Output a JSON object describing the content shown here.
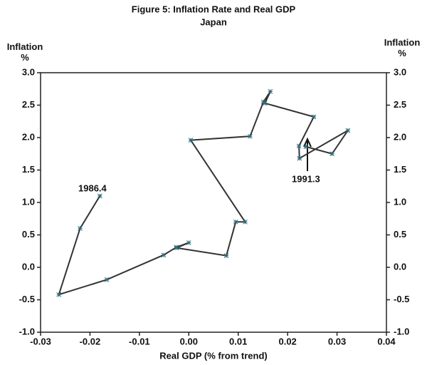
{
  "chart_data": {
    "type": "line",
    "title": "Figure 5: Inflation Rate and Real GDP",
    "subtitle": "Japan",
    "x_label": "Real GDP (% from trend)",
    "y_label": "Inflation %",
    "y2_label": "Inflation %",
    "x": [
      -0.018,
      -0.022,
      -0.0263,
      -0.0166,
      -0.0051,
      -0.0025,
      0,
      -0.0025,
      0.0076,
      0.0095,
      0.0114,
      0.0004,
      0.0124,
      0.0151,
      0.0165,
      0.0154,
      0.0253,
      0.0223,
      0.0224,
      0.0322,
      0.029,
      0.0237
    ],
    "series": [
      {
        "color": "#333333",
        "marker_color": "#2e6b78",
        "values": [
          1.1,
          0.6,
          -0.42,
          -0.19,
          0.19,
          0.31,
          0.38,
          0.3,
          0.18,
          0.7,
          0.7,
          1.96,
          2.02,
          2.55,
          2.71,
          2.53,
          2.32,
          1.87,
          1.68,
          2.11,
          1.75,
          1.86
        ]
      }
    ],
    "annotations": [
      "1986.4",
      "1991.3"
    ],
    "xlim": [
      -0.03,
      0.04
    ],
    "xticks": [
      -0.03,
      -0.02,
      -0.01,
      {
        "value": 0,
        "label": "0.00"
      },
      0.01,
      0.02,
      0.03,
      0.04
    ],
    "ylim": [
      -1,
      3
    ],
    "yticks": [
      {
        "value": -1,
        "label": "-1.0"
      },
      -0.5,
      {
        "value": 0,
        "label": "0.0"
      },
      0.5,
      {
        "value": 1,
        "label": "1.0"
      },
      1.5,
      {
        "value": 2,
        "label": "2.0"
      },
      2.5,
      {
        "value": 3,
        "label": "3.0"
      }
    ],
    "y2lim": [
      -1,
      3
    ],
    "y2ticks": [
      {
        "value": -1,
        "label": "-1.0"
      },
      -0.5,
      {
        "value": 0,
        "label": "0.0"
      },
      0.5,
      {
        "value": 1,
        "label": "1.0"
      },
      1.5,
      {
        "value": 2,
        "label": "2.0"
      },
      2.5,
      {
        "value": 3,
        "label": "3.0"
      }
    ]
  }
}
